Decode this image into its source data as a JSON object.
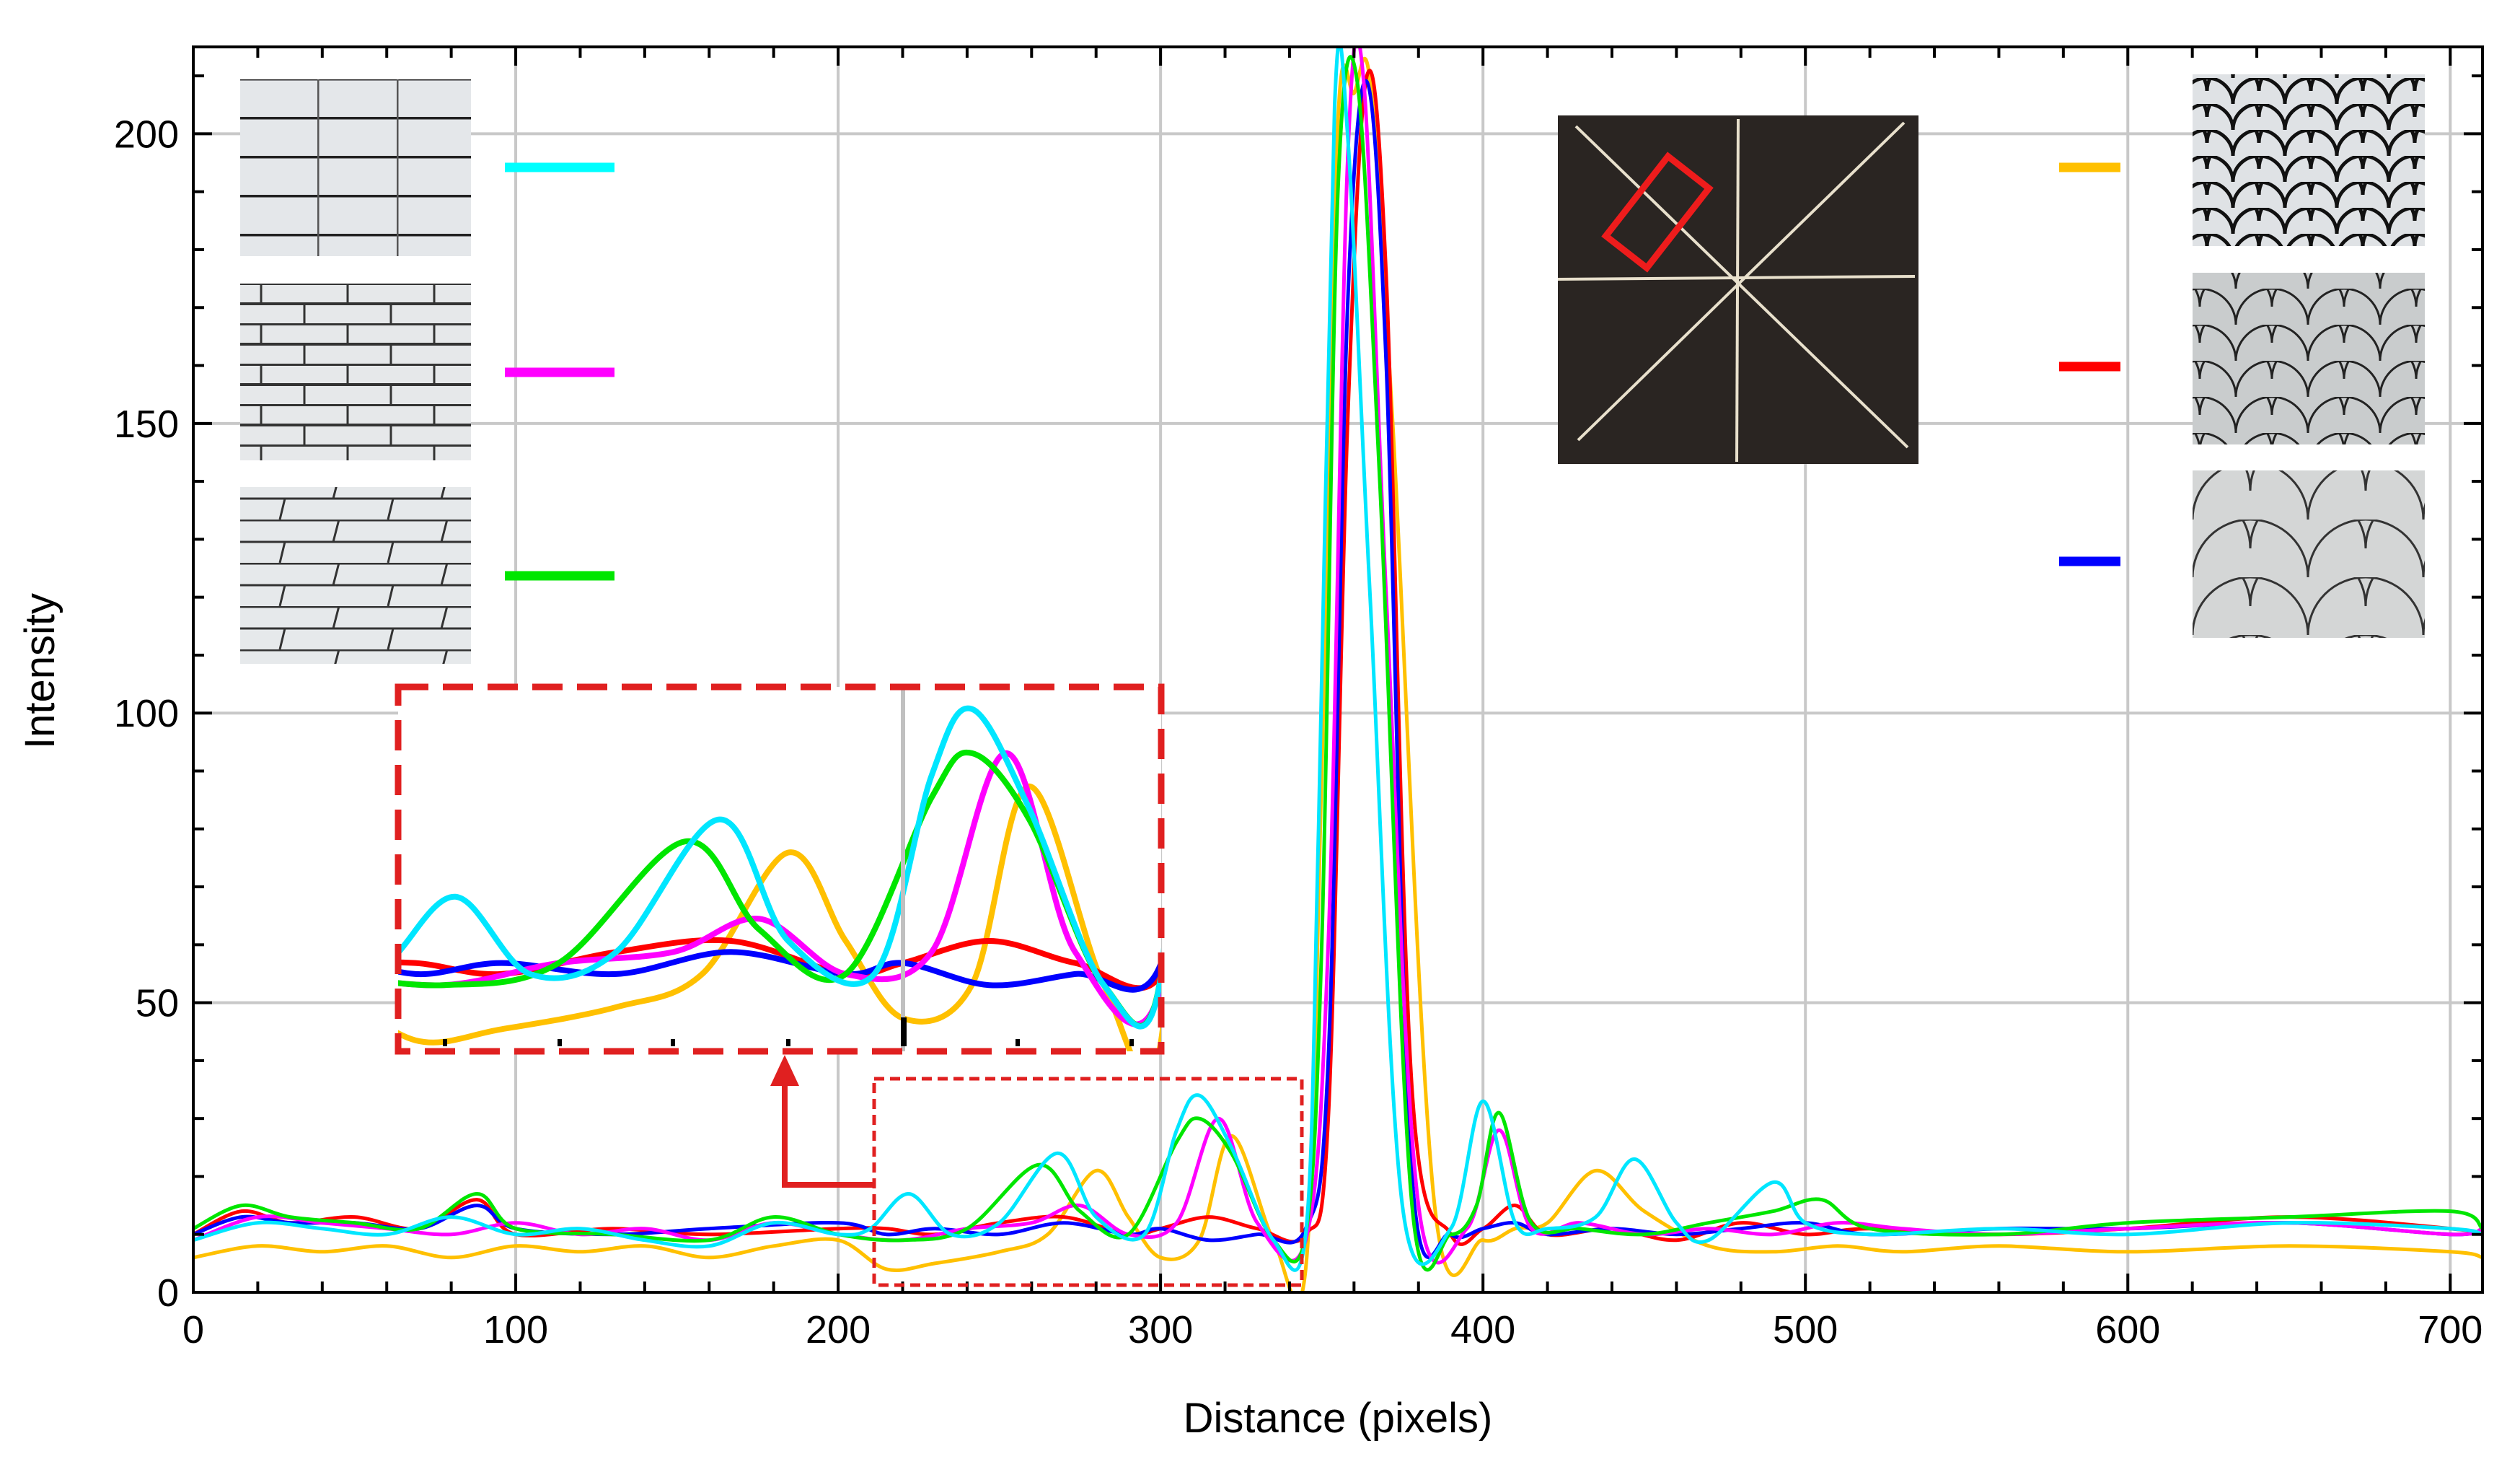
{
  "chart_data": {
    "type": "line",
    "xlabel": "Distance (pixels)",
    "ylabel": "Intensity",
    "xlim": [
      0,
      710
    ],
    "ylim": [
      0,
      215
    ],
    "xticks": [
      0,
      100,
      200,
      300,
      400,
      500,
      600,
      700
    ],
    "yticks": [
      0,
      50,
      100,
      150,
      200
    ],
    "grid": true,
    "series": [
      {
        "color": "#ffc000",
        "x": [
          0,
          20,
          40,
          60,
          80,
          100,
          120,
          140,
          160,
          180,
          200,
          215,
          230,
          250,
          265,
          280,
          290,
          300,
          312,
          322,
          335,
          345,
          350,
          355,
          360,
          365,
          372,
          385,
          400,
          410,
          420,
          435,
          450,
          470,
          490,
          510,
          530,
          560,
          600,
          650,
          700,
          710
        ],
        "y": [
          6,
          8,
          7,
          8,
          6,
          8,
          7,
          8,
          6,
          8,
          9,
          4,
          5,
          7,
          10,
          21,
          13,
          6,
          9,
          27,
          9,
          4,
          90,
          202,
          207,
          209,
          150,
          15,
          9,
          11,
          12,
          21,
          14,
          8,
          7,
          8,
          7,
          8,
          7,
          8,
          7,
          6
        ]
      },
      {
        "color": "#ff0000",
        "x": [
          0,
          15,
          30,
          50,
          70,
          88,
          100,
          130,
          160,
          200,
          215,
          230,
          250,
          270,
          290,
          300,
          315,
          330,
          345,
          352,
          358,
          364,
          370,
          378,
          390,
          400,
          410,
          420,
          440,
          460,
          480,
          500,
          520,
          560,
          600,
          650,
          700,
          710
        ],
        "y": [
          10,
          14,
          12,
          13,
          11,
          16,
          10,
          11,
          10,
          11,
          11,
          10,
          12,
          13,
          10,
          11,
          13,
          11,
          10,
          30,
          150,
          210,
          175,
          35,
          10,
          11,
          15,
          10,
          11,
          9,
          12,
          10,
          11,
          10,
          11,
          13,
          11,
          10
        ]
      },
      {
        "color": "#0000ff",
        "x": [
          0,
          15,
          30,
          50,
          70,
          88,
          100,
          130,
          160,
          200,
          215,
          230,
          250,
          270,
          290,
          300,
          315,
          330,
          345,
          352,
          358,
          364,
          370,
          378,
          390,
          400,
          410,
          420,
          440,
          460,
          480,
          500,
          520,
          560,
          600,
          650,
          700,
          710
        ],
        "y": [
          10,
          13,
          12,
          12,
          11,
          15,
          11,
          10,
          11,
          12,
          10,
          11,
          10,
          12,
          10,
          11,
          9,
          10,
          11,
          40,
          170,
          209,
          160,
          20,
          10,
          11,
          12,
          10,
          11,
          10,
          11,
          12,
          10,
          11,
          11,
          12,
          10,
          11
        ]
      },
      {
        "color": "#ff00ff",
        "x": [
          0,
          20,
          40,
          60,
          80,
          100,
          120,
          140,
          160,
          180,
          200,
          220,
          240,
          260,
          275,
          290,
          305,
          318,
          330,
          345,
          352,
          358,
          363,
          370,
          380,
          395,
          405,
          415,
          430,
          450,
          470,
          490,
          510,
          530,
          560,
          600,
          650,
          700,
          710
        ],
        "y": [
          9,
          13,
          12,
          11,
          10,
          12,
          10,
          11,
          9,
          12,
          10,
          9,
          11,
          12,
          15,
          10,
          12,
          30,
          12,
          9,
          60,
          195,
          209,
          120,
          15,
          11,
          28,
          11,
          12,
          10,
          11,
          10,
          12,
          11,
          10,
          11,
          12,
          10,
          11
        ]
      },
      {
        "color": "#00e600",
        "x": [
          0,
          15,
          30,
          50,
          70,
          88,
          100,
          130,
          160,
          180,
          200,
          220,
          240,
          262,
          275,
          290,
          305,
          312,
          322,
          335,
          345,
          350,
          355,
          361,
          368,
          378,
          390,
          398,
          405,
          415,
          430,
          450,
          470,
          490,
          505,
          520,
          560,
          600,
          650,
          700,
          710
        ],
        "y": [
          11,
          15,
          13,
          12,
          11,
          17,
          11,
          10,
          9,
          13,
          10,
          9,
          11,
          22,
          14,
          10,
          26,
          30,
          24,
          9,
          10,
          60,
          190,
          209,
          140,
          15,
          10,
          15,
          31,
          12,
          11,
          10,
          12,
          14,
          16,
          11,
          10,
          12,
          13,
          14,
          11
        ]
      },
      {
        "color": "#00e6ff",
        "x": [
          0,
          20,
          40,
          60,
          80,
          100,
          120,
          140,
          160,
          180,
          200,
          210,
          222,
          235,
          250,
          268,
          280,
          295,
          305,
          312,
          322,
          335,
          345,
          349,
          354,
          358,
          365,
          375,
          390,
          400,
          410,
          420,
          435,
          447,
          460,
          470,
          490,
          500,
          520,
          560,
          600,
          650,
          700,
          710
        ],
        "y": [
          9,
          12,
          11,
          10,
          13,
          10,
          11,
          9,
          8,
          12,
          10,
          11,
          17,
          10,
          12,
          24,
          13,
          10,
          28,
          34,
          25,
          9,
          10,
          80,
          205,
          200,
          120,
          15,
          11,
          33,
          12,
          11,
          13,
          23,
          12,
          9,
          19,
          12,
          10,
          11,
          10,
          12,
          11,
          10
        ]
      }
    ],
    "inset": {
      "source_x_range": [
        212,
        345
      ],
      "source_y_range": [
        3,
        36
      ]
    }
  },
  "legend_lines": [
    {
      "color": "#00ffff"
    },
    {
      "color": "#ff00ff"
    },
    {
      "color": "#00e600"
    },
    {
      "color": "#ffc000"
    },
    {
      "color": "#ff0000"
    },
    {
      "color": "#0000ff"
    }
  ]
}
